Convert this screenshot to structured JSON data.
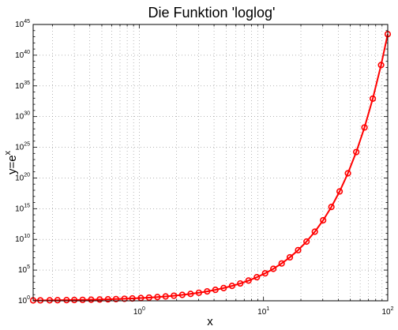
{
  "chart_data": {
    "type": "line",
    "title": "Die Funktion 'loglog'",
    "xlabel": "x",
    "ylabel": {
      "base": "y=e",
      "sup": "x"
    },
    "xscale": "log",
    "yscale": "log",
    "xlim": [
      0.14,
      100
    ],
    "ylim": [
      1,
      1e+45
    ],
    "grid": true,
    "x_tick_labels": [
      {
        "value": 1,
        "base": "10",
        "exp": "0"
      },
      {
        "value": 10,
        "base": "10",
        "exp": "1"
      },
      {
        "value": 100,
        "base": "10",
        "exp": "2"
      }
    ],
    "y_tick_labels": [
      {
        "value": 1,
        "base": "10",
        "exp": "0"
      },
      {
        "value": 100000.0,
        "base": "10",
        "exp": "5"
      },
      {
        "value": 10000000000.0,
        "base": "10",
        "exp": "10"
      },
      {
        "value": 1000000000000000.0,
        "base": "10",
        "exp": "15"
      },
      {
        "value": 1e+20,
        "base": "10",
        "exp": "20"
      },
      {
        "value": 1e+25,
        "base": "10",
        "exp": "25"
      },
      {
        "value": 1e+30,
        "base": "10",
        "exp": "30"
      },
      {
        "value": 1e+35,
        "base": "10",
        "exp": "35"
      },
      {
        "value": 1e+40,
        "base": "10",
        "exp": "40"
      },
      {
        "value": 1e+45,
        "base": "10",
        "exp": "45"
      }
    ],
    "series": [
      {
        "function": "y = exp(x)",
        "color": "#ff0000",
        "marker": "circle-open",
        "x": [
          0.14,
          0.16,
          0.19,
          0.22,
          0.26,
          0.3,
          0.35,
          0.41,
          0.48,
          0.56,
          0.65,
          0.76,
          0.88,
          1.03,
          1.2,
          1.4,
          1.63,
          1.9,
          2.22,
          2.59,
          3.02,
          3.52,
          4.1,
          4.78,
          5.58,
          6.5,
          7.58,
          8.84,
          10.3,
          12.0,
          14.0,
          16.3,
          19.0,
          22.2,
          25.9,
          30.2,
          35.2,
          41.0,
          47.8,
          55.8,
          65.0,
          75.8,
          88.4,
          100.0
        ],
        "y": [
          1.15,
          1.174,
          1.209,
          1.246,
          1.297,
          1.35,
          1.419,
          1.507,
          1.616,
          1.751,
          1.916,
          2.138,
          2.411,
          2.801,
          3.32,
          4.055,
          5.104,
          6.686,
          9.207,
          13.33,
          20.49,
          33.78,
          60.34,
          119.1,
          265.0,
          665.1,
          1959,
          6890,
          29733,
          162755,
          1203000.0,
          12000000.0,
          178500000.0,
          4367000000.0,
          176000000000.0,
          13080000000000.0,
          1942000000000000.0,
          6.397e+17,
          5.763e+20,
          1.697e+24,
          1.695e+28,
          8.367e+32,
          2.492e+38,
          2.688e+43
        ]
      }
    ]
  }
}
